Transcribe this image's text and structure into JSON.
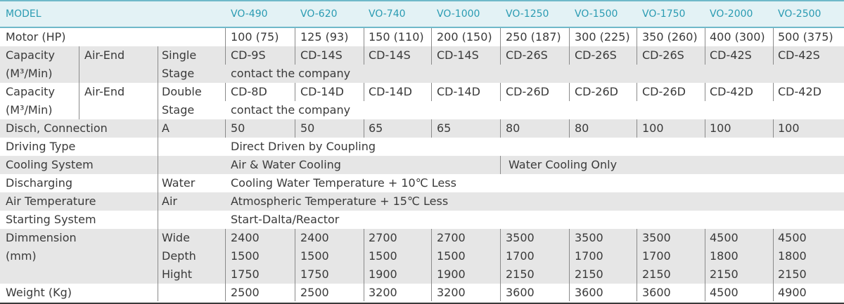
{
  "table": {
    "header": [
      "MODEL",
      "VO-490",
      "VO-620",
      "VO-740",
      "VO-1000",
      "VO-1250",
      "VO-1500",
      "VO-1750",
      "VO-2000",
      "VO-2500"
    ],
    "rows": [
      {
        "shade": "w",
        "h": 26,
        "c": [
          [
            "Motor (HP)",
            8
          ],
          [
            "100 (75)",
            328
          ],
          [
            "125 (93)",
            427
          ],
          [
            "150 (110)",
            524
          ],
          [
            "200 (150)",
            621
          ],
          [
            "250 (187)",
            719
          ],
          [
            "300 (225)",
            817
          ],
          [
            "350 (260)",
            913
          ],
          [
            "400 (300)",
            1009
          ],
          [
            "500 (375)",
            1106
          ]
        ],
        "v": [
          320,
          419,
          517,
          613,
          711,
          809,
          905,
          1002,
          1099
        ]
      },
      {
        "shade": "g",
        "h": 26,
        "c": [
          [
            "Capacity",
            8
          ],
          [
            "Air-End",
            120
          ],
          [
            "Single",
            230
          ],
          [
            "CD-9S",
            328
          ],
          [
            "CD-14S",
            427
          ],
          [
            "CD-14S",
            524
          ],
          [
            "CD-14S",
            621
          ],
          [
            "CD-26S",
            719
          ],
          [
            "CD-26S",
            817
          ],
          [
            "CD-26S",
            913
          ],
          [
            "CD-42S",
            1009
          ],
          [
            "CD-42S",
            1106
          ]
        ],
        "v": [
          112,
          224,
          320,
          419,
          517,
          613,
          711,
          809,
          905,
          1002,
          1099
        ]
      },
      {
        "shade": "g",
        "h": 26,
        "c": [
          [
            "(M³/Min)",
            8
          ],
          [
            "Stage",
            230
          ],
          [
            "contact the company",
            328
          ]
        ],
        "v": [
          112,
          224
        ]
      },
      {
        "shade": "w",
        "h": 26,
        "c": [
          [
            "Capacity",
            8
          ],
          [
            "Air-End",
            120
          ],
          [
            "Double",
            230
          ],
          [
            "CD-8D",
            328
          ],
          [
            "CD-14D",
            427
          ],
          [
            "CD-14D",
            524
          ],
          [
            "CD-14D",
            621
          ],
          [
            "CD-26D",
            719
          ],
          [
            "CD-26D",
            817
          ],
          [
            "CD-26D",
            913
          ],
          [
            "CD-42D",
            1009
          ],
          [
            "CD-42D",
            1106
          ]
        ],
        "v": [
          112,
          224,
          320,
          419,
          517,
          613,
          711,
          809,
          905,
          1002,
          1099
        ]
      },
      {
        "shade": "w",
        "h": 26,
        "c": [
          [
            "(M³/Min)",
            8
          ],
          [
            "Stage",
            230
          ],
          [
            "contact the company",
            328
          ]
        ],
        "v": [
          112,
          224
        ]
      },
      {
        "shade": "g",
        "h": 26,
        "c": [
          [
            "Disch, Connection",
            8
          ],
          [
            "A",
            230
          ],
          [
            "50",
            328
          ],
          [
            "50",
            427
          ],
          [
            "65",
            524
          ],
          [
            "65",
            621
          ],
          [
            "80",
            719
          ],
          [
            "80",
            817
          ],
          [
            "100",
            913
          ],
          [
            "100",
            1009
          ],
          [
            "100",
            1106
          ]
        ],
        "v": [
          224,
          320,
          419,
          517,
          613,
          711,
          809,
          905,
          1002,
          1099
        ]
      },
      {
        "shade": "w",
        "h": 26,
        "c": [
          [
            "Driving Type",
            8
          ],
          [
            "Direct Driven by Coupling",
            328
          ]
        ],
        "v": [
          224
        ]
      },
      {
        "shade": "g",
        "h": 26,
        "c": [
          [
            "Cooling System",
            8
          ],
          [
            "Air & Water Cooling",
            328
          ],
          [
            "Water Cooling Only",
            723
          ]
        ],
        "v": [
          224,
          711
        ]
      },
      {
        "shade": "w",
        "h": 26,
        "c": [
          [
            "Discharging",
            8
          ],
          [
            "Water",
            230
          ],
          [
            "Cooling Water Temperature + 10℃ Less",
            328
          ]
        ],
        "v": [
          224
        ]
      },
      {
        "shade": "g",
        "h": 26,
        "c": [
          [
            "Air Temperature",
            8
          ],
          [
            "Air",
            230
          ],
          [
            "Atmospheric Temperature + 15℃ Less",
            328
          ]
        ],
        "v": [
          224
        ]
      },
      {
        "shade": "w",
        "h": 26,
        "c": [
          [
            "Starting System",
            8
          ],
          [
            "Start-Dalta/Reactor",
            328
          ]
        ],
        "v": [
          224
        ]
      },
      {
        "shade": "g",
        "h": 26,
        "c": [
          [
            "Dimmension",
            8
          ],
          [
            "Wide",
            230
          ],
          [
            "2400",
            328
          ],
          [
            "2400",
            427
          ],
          [
            "2700",
            524
          ],
          [
            "2700",
            621
          ],
          [
            "3500",
            719
          ],
          [
            "3500",
            817
          ],
          [
            "3500",
            913
          ],
          [
            "4500",
            1009
          ],
          [
            "4500",
            1106
          ]
        ],
        "v": [
          224,
          320,
          419,
          517,
          613,
          711,
          809,
          905,
          1002,
          1099
        ]
      },
      {
        "shade": "g",
        "h": 26,
        "c": [
          [
            "(mm)",
            8
          ],
          [
            "Depth",
            230
          ],
          [
            "1500",
            328
          ],
          [
            "1500",
            427
          ],
          [
            "1500",
            524
          ],
          [
            "1500",
            621
          ],
          [
            "1700",
            719
          ],
          [
            "1700",
            817
          ],
          [
            "1700",
            913
          ],
          [
            "1800",
            1009
          ],
          [
            "1800",
            1106
          ]
        ],
        "v": [
          224,
          320,
          419,
          517,
          613,
          711,
          809,
          905,
          1002,
          1099
        ]
      },
      {
        "shade": "g",
        "h": 26,
        "c": [
          [
            "",
            8
          ],
          [
            "Hight",
            230
          ],
          [
            "1750",
            328
          ],
          [
            "1750",
            427
          ],
          [
            "1900",
            524
          ],
          [
            "1900",
            621
          ],
          [
            "2150",
            719
          ],
          [
            "2150",
            817
          ],
          [
            "2150",
            913
          ],
          [
            "2150",
            1009
          ],
          [
            "2150",
            1106
          ]
        ],
        "v": [
          224,
          320,
          419,
          517,
          613,
          711,
          809,
          905,
          1002,
          1099
        ]
      },
      {
        "shade": "w",
        "h": 25,
        "c": [
          [
            "Weight (Kg)",
            8
          ],
          [
            "2500",
            328
          ],
          [
            "2500",
            427
          ],
          [
            "3200",
            524
          ],
          [
            "3200",
            621
          ],
          [
            "3600",
            719
          ],
          [
            "3600",
            817
          ],
          [
            "3600",
            913
          ],
          [
            "4500",
            1009
          ],
          [
            "4900",
            1106
          ]
        ],
        "v": [
          224,
          320,
          419,
          517,
          613,
          711,
          809,
          905,
          1002,
          1099
        ]
      }
    ],
    "header_x": [
      8,
      328,
      427,
      524,
      621,
      719,
      817,
      913,
      1009,
      1106
    ]
  }
}
